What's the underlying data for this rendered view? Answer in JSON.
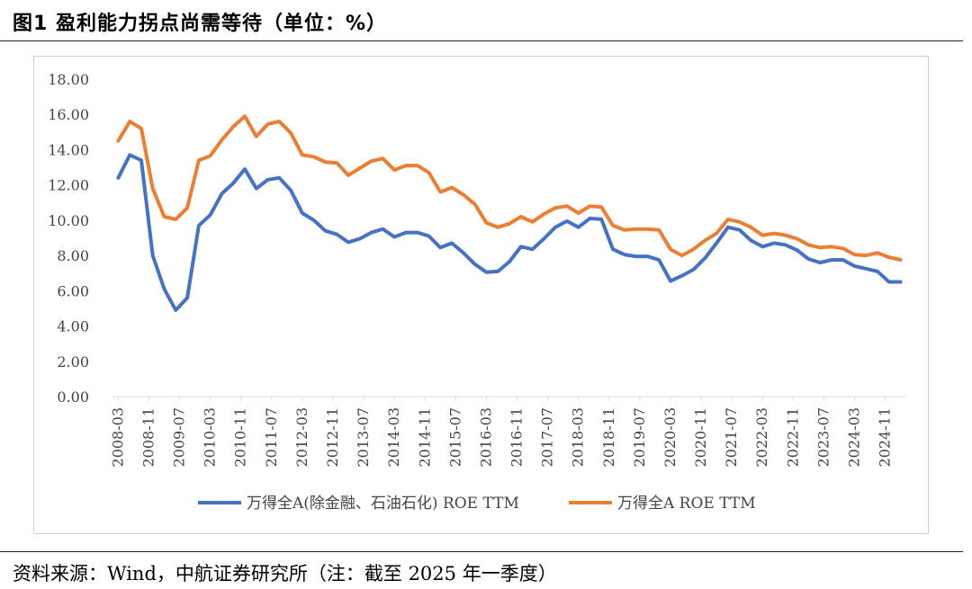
{
  "figure": {
    "title": "图1  盈利能力拐点尚需等待（单位：%）",
    "source": "资料来源：Wind，中航证券研究所（注：截至 2025 年一季度）"
  },
  "colors": {
    "series_blue": "#4472C4",
    "series_orange": "#ED7D31",
    "axis": "#d9d9d9"
  },
  "chart_data": {
    "type": "line",
    "title": "",
    "xlabel": "",
    "ylabel": "",
    "ylim": [
      0,
      18
    ],
    "yticks": [
      "0.00",
      "2.00",
      "4.00",
      "6.00",
      "8.00",
      "10.00",
      "12.00",
      "14.00",
      "16.00",
      "18.00"
    ],
    "xtick_labels": [
      "2008-03",
      "2008-11",
      "2009-07",
      "2010-03",
      "2010-11",
      "2011-07",
      "2012-03",
      "2012-11",
      "2013-07",
      "2014-03",
      "2014-11",
      "2015-07",
      "2016-03",
      "2016-11",
      "2017-07",
      "2018-03",
      "2018-11",
      "2019-07",
      "2020-03",
      "2020-11",
      "2021-07",
      "2022-03",
      "2022-11",
      "2023-07",
      "2024-03",
      "2024-11"
    ],
    "grid": false,
    "legend": "bottom",
    "x": [
      "2008-03",
      "2008-06",
      "2008-09",
      "2008-12",
      "2009-03",
      "2009-06",
      "2009-09",
      "2009-12",
      "2010-03",
      "2010-06",
      "2010-09",
      "2010-12",
      "2011-03",
      "2011-06",
      "2011-09",
      "2011-12",
      "2012-03",
      "2012-06",
      "2012-09",
      "2012-12",
      "2013-03",
      "2013-06",
      "2013-09",
      "2013-12",
      "2014-03",
      "2014-06",
      "2014-09",
      "2014-12",
      "2015-03",
      "2015-06",
      "2015-09",
      "2015-12",
      "2016-03",
      "2016-06",
      "2016-09",
      "2016-12",
      "2017-03",
      "2017-06",
      "2017-09",
      "2017-12",
      "2018-03",
      "2018-06",
      "2018-09",
      "2018-12",
      "2019-03",
      "2019-06",
      "2019-09",
      "2019-12",
      "2020-03",
      "2020-06",
      "2020-09",
      "2020-12",
      "2021-03",
      "2021-06",
      "2021-09",
      "2021-12",
      "2022-03",
      "2022-06",
      "2022-09",
      "2022-12",
      "2023-03",
      "2023-06",
      "2023-09",
      "2023-12",
      "2024-03",
      "2024-06",
      "2024-09",
      "2024-12",
      "2025-03"
    ],
    "series": [
      {
        "name": "万得全A(除金融、石油石化) ROE TTM",
        "color": "#4472C4",
        "values": [
          12.4,
          13.7,
          13.4,
          8.0,
          6.1,
          4.9,
          5.6,
          9.7,
          10.3,
          11.5,
          12.1,
          12.9,
          11.8,
          12.3,
          12.4,
          11.7,
          10.4,
          10.0,
          9.4,
          9.2,
          8.75,
          8.95,
          9.3,
          9.5,
          9.05,
          9.3,
          9.3,
          9.1,
          8.45,
          8.7,
          8.15,
          7.5,
          7.05,
          7.1,
          7.65,
          8.5,
          8.35,
          8.95,
          9.6,
          9.95,
          9.6,
          10.1,
          10.05,
          8.35,
          8.05,
          7.95,
          7.95,
          7.75,
          6.55,
          6.85,
          7.2,
          7.85,
          8.7,
          9.6,
          9.45,
          8.85,
          8.5,
          8.7,
          8.6,
          8.3,
          7.8,
          7.6,
          7.75,
          7.75,
          7.4,
          7.25,
          7.1,
          6.5,
          6.5
        ]
      },
      {
        "name": "万得全A ROE TTM",
        "color": "#ED7D31",
        "values": [
          14.5,
          15.6,
          15.2,
          11.8,
          10.2,
          10.05,
          10.7,
          13.4,
          13.65,
          14.55,
          15.3,
          15.9,
          14.75,
          15.45,
          15.6,
          14.95,
          13.7,
          13.6,
          13.3,
          13.25,
          12.55,
          12.95,
          13.35,
          13.5,
          12.85,
          13.1,
          13.1,
          12.7,
          11.6,
          11.85,
          11.45,
          10.9,
          9.85,
          9.6,
          9.8,
          10.2,
          9.9,
          10.35,
          10.7,
          10.8,
          10.4,
          10.8,
          10.75,
          9.7,
          9.45,
          9.5,
          9.5,
          9.45,
          8.35,
          8.0,
          8.35,
          8.85,
          9.25,
          10.05,
          9.9,
          9.6,
          9.15,
          9.25,
          9.15,
          8.95,
          8.6,
          8.45,
          8.5,
          8.4,
          8.05,
          8.0,
          8.15,
          7.9,
          7.75
        ]
      }
    ]
  }
}
